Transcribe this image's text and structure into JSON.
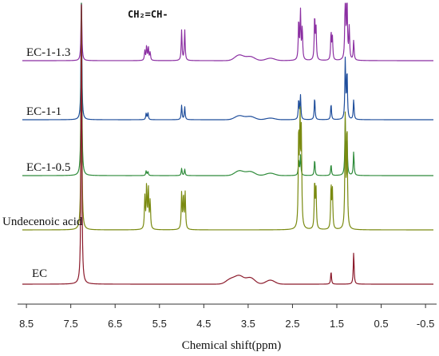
{
  "chart_data": {
    "type": "line",
    "title": "",
    "xlabel": "Chemical shift(ppm)",
    "ylabel": "",
    "xlim": [
      8.7,
      -0.75
    ],
    "x_reversed": true,
    "grid": false,
    "legend": "none",
    "x_ticks": [
      8.5,
      7.5,
      6.5,
      5.5,
      4.5,
      3.5,
      2.5,
      1.5,
      0.5,
      -0.5
    ],
    "x_tick_labels": [
      "8.5",
      "7.5",
      "6.5",
      "5.5",
      "4.5",
      "3.5",
      "2.5",
      "1.5",
      "0.5",
      "-0.5"
    ],
    "annotations": [
      {
        "text": "CH₂=CH-",
        "x": 5.3
      }
    ],
    "series": [
      {
        "name": "EC-1-1.3",
        "color": "#8b2fa2",
        "peaks": [
          {
            "x": 7.26,
            "height": 80
          },
          {
            "x": 5.83,
            "height": 12
          },
          {
            "x": 5.79,
            "height": 18
          },
          {
            "x": 5.75,
            "height": 16
          },
          {
            "x": 5.71,
            "height": 10
          },
          {
            "x": 5.0,
            "height": 38
          },
          {
            "x": 4.93,
            "height": 38
          },
          {
            "x": 2.36,
            "height": 50
          },
          {
            "x": 2.32,
            "height": 60
          },
          {
            "x": 2.28,
            "height": 40
          },
          {
            "x": 2.0,
            "height": 55
          },
          {
            "x": 1.97,
            "height": 40
          },
          {
            "x": 1.63,
            "height": 35
          },
          {
            "x": 1.6,
            "height": 28
          },
          {
            "x": 1.31,
            "height": 95
          },
          {
            "x": 1.27,
            "height": 80
          },
          {
            "x": 1.22,
            "height": 40
          },
          {
            "x": 1.12,
            "height": 25
          }
        ],
        "humps": [
          {
            "x": 3.7,
            "height": 7
          },
          {
            "x": 3.45,
            "height": 5
          },
          {
            "x": 3.0,
            "height": 3
          }
        ]
      },
      {
        "name": "EC-1-1",
        "color": "#1f4e9c",
        "peaks": [
          {
            "x": 7.26,
            "height": 150
          },
          {
            "x": 5.8,
            "height": 8
          },
          {
            "x": 5.76,
            "height": 9
          },
          {
            "x": 5.0,
            "height": 18
          },
          {
            "x": 4.93,
            "height": 16
          },
          {
            "x": 2.36,
            "height": 25
          },
          {
            "x": 2.32,
            "height": 30
          },
          {
            "x": 2.0,
            "height": 28
          },
          {
            "x": 1.63,
            "height": 20
          },
          {
            "x": 1.31,
            "height": 75
          },
          {
            "x": 1.27,
            "height": 60
          },
          {
            "x": 1.12,
            "height": 25
          }
        ],
        "humps": [
          {
            "x": 3.7,
            "height": 5
          },
          {
            "x": 3.45,
            "height": 4
          },
          {
            "x": 3.0,
            "height": 2
          }
        ]
      },
      {
        "name": "EC-1-0.5",
        "color": "#2e8b3a",
        "peaks": [
          {
            "x": 7.26,
            "height": 220
          },
          {
            "x": 5.8,
            "height": 6
          },
          {
            "x": 5.76,
            "height": 5
          },
          {
            "x": 5.0,
            "height": 9
          },
          {
            "x": 4.93,
            "height": 8
          },
          {
            "x": 2.36,
            "height": 20
          },
          {
            "x": 2.32,
            "height": 25
          },
          {
            "x": 2.0,
            "height": 20
          },
          {
            "x": 1.63,
            "height": 14
          },
          {
            "x": 1.31,
            "height": 70
          },
          {
            "x": 1.27,
            "height": 45
          },
          {
            "x": 1.12,
            "height": 30
          }
        ],
        "humps": [
          {
            "x": 3.7,
            "height": 6
          },
          {
            "x": 3.45,
            "height": 5
          },
          {
            "x": 3.0,
            "height": 3
          }
        ]
      },
      {
        "name": "Undecenoic acid",
        "color": "#7a8a10",
        "peaks": [
          {
            "x": 7.26,
            "height": 280
          },
          {
            "x": 5.83,
            "height": 40
          },
          {
            "x": 5.79,
            "height": 55
          },
          {
            "x": 5.75,
            "height": 50
          },
          {
            "x": 5.71,
            "height": 35
          },
          {
            "x": 5.0,
            "height": 45
          },
          {
            "x": 4.96,
            "height": 42
          },
          {
            "x": 4.92,
            "height": 45
          },
          {
            "x": 2.36,
            "height": 120
          },
          {
            "x": 2.33,
            "height": 130
          },
          {
            "x": 2.3,
            "height": 115
          },
          {
            "x": 2.0,
            "height": 60
          },
          {
            "x": 1.97,
            "height": 50
          },
          {
            "x": 1.63,
            "height": 55
          },
          {
            "x": 1.6,
            "height": 48
          },
          {
            "x": 1.31,
            "height": 140
          },
          {
            "x": 1.27,
            "height": 130
          }
        ],
        "humps": []
      },
      {
        "name": "EC",
        "color": "#8b1a2b",
        "peaks": [
          {
            "x": 7.26,
            "height": 350
          },
          {
            "x": 1.63,
            "height": 16
          },
          {
            "x": 1.12,
            "height": 40
          }
        ],
        "humps": [
          {
            "x": 3.9,
            "height": 6
          },
          {
            "x": 3.7,
            "height": 10
          },
          {
            "x": 3.45,
            "height": 8
          },
          {
            "x": 3.0,
            "height": 5
          }
        ]
      }
    ]
  }
}
